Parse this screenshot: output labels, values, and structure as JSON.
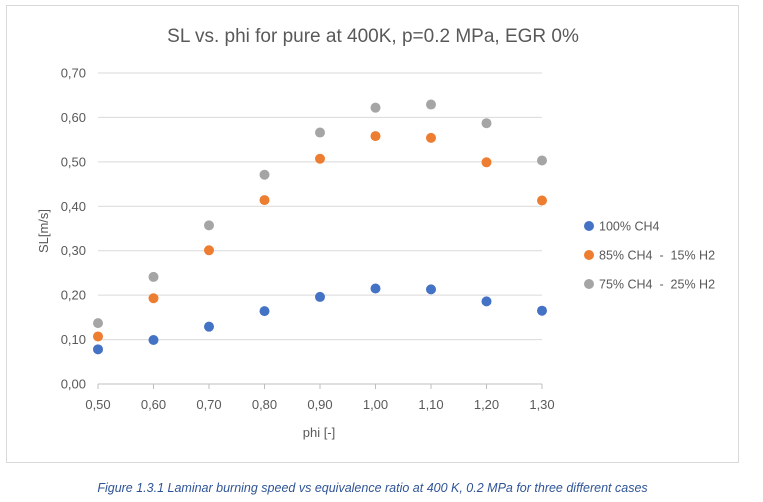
{
  "chart_data": {
    "type": "scatter",
    "title": "SL vs. phi for pure at 400K, p=0.2 MPa, EGR 0%",
    "xlabel": "phi [-]",
    "ylabel": "SL[m/s]",
    "xlim": [
      0.5,
      1.3
    ],
    "ylim": [
      0,
      0.7
    ],
    "x_ticks": [
      "0,50",
      "0,60",
      "0,70",
      "0,80",
      "0,90",
      "1,00",
      "1,10",
      "1,20",
      "1,30"
    ],
    "y_ticks": [
      "0,00",
      "0,10",
      "0,20",
      "0,30",
      "0,40",
      "0,50",
      "0,60",
      "0,70"
    ],
    "grid": "horizontal",
    "legend_position": "right",
    "x": [
      0.5,
      0.6,
      0.7,
      0.8,
      0.9,
      1.0,
      1.1,
      1.2,
      1.3
    ],
    "series": [
      {
        "name": "100% CH4",
        "color": "#4472c4",
        "values": [
          0.078,
          0.099,
          0.129,
          0.164,
          0.196,
          0.215,
          0.213,
          0.186,
          0.165
        ]
      },
      {
        "name": "85% CH4  -  15% H2",
        "color": "#ed7d31",
        "values": [
          0.107,
          0.193,
          0.301,
          0.414,
          0.507,
          0.558,
          0.554,
          0.499,
          0.413
        ]
      },
      {
        "name": "75% CH4  -  25% H2",
        "color": "#a5a5a5",
        "values": [
          0.137,
          0.241,
          0.357,
          0.471,
          0.566,
          0.622,
          0.629,
          0.587,
          0.503
        ]
      }
    ]
  },
  "caption": "Figure 1.3.1 Laminar burning speed vs equivalence ratio at 400 K, 0.2 MPa for three different cases"
}
